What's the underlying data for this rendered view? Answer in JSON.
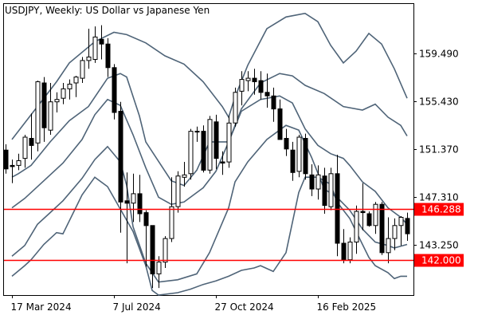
{
  "chart_data": {
    "type": "candlestick",
    "title": "USDJPY, Weekly:  US Dollar vs Japanese Yen",
    "yticks": [
      143.25,
      147.31,
      151.37,
      155.43,
      159.49
    ],
    "ytick_labels": [
      "143.250",
      "147.310",
      "151.370",
      "155.430",
      "159.490"
    ],
    "ylim": [
      139.0,
      163.7
    ],
    "xtick_labels": [
      {
        "label": "17 Mar 2024",
        "index": 1
      },
      {
        "label": "7 Jul 2024",
        "index": 17
      },
      {
        "label": "27 Oct 2024",
        "index": 33
      },
      {
        "label": "16 Feb 2025",
        "index": 49
      }
    ],
    "hlines": [
      {
        "value": 146.288,
        "label": "146.288",
        "color": "#ff0000"
      },
      {
        "value": 142.0,
        "label": "142.000",
        "color": "#ff0000"
      }
    ],
    "bollinger": [
      {
        "name": "upper",
        "points": [
          [
            1,
            152.2
          ],
          [
            4,
            154.3
          ],
          [
            8,
            157.1
          ],
          [
            10,
            158.7
          ],
          [
            14,
            160.5
          ],
          [
            17,
            161.3
          ],
          [
            19,
            161.1
          ],
          [
            22,
            160.4
          ],
          [
            25,
            159.3
          ],
          [
            28,
            158.6
          ],
          [
            31,
            157.1
          ],
          [
            34,
            155.0
          ],
          [
            35,
            154.1
          ],
          [
            36,
            155.8
          ],
          [
            38,
            158.5
          ],
          [
            41,
            161.6
          ],
          [
            44,
            162.6
          ],
          [
            47,
            162.9
          ],
          [
            49,
            162.2
          ],
          [
            51,
            160.2
          ],
          [
            53,
            158.7
          ],
          [
            55,
            159.7
          ],
          [
            57,
            161.2
          ],
          [
            59,
            160.3
          ],
          [
            61,
            158.2
          ],
          [
            63,
            155.7
          ]
        ]
      },
      {
        "name": "mid-upper",
        "points": [
          [
            1,
            149.0
          ],
          [
            2,
            149.3
          ],
          [
            4,
            150.0
          ],
          [
            7,
            152.0
          ],
          [
            10,
            153.8
          ],
          [
            13,
            155.0
          ],
          [
            16,
            157.4
          ],
          [
            18,
            157.8
          ],
          [
            19,
            157.5
          ],
          [
            21,
            154.2
          ],
          [
            22,
            152.0
          ],
          [
            26,
            148.7
          ],
          [
            28,
            148.3
          ],
          [
            30,
            149.6
          ],
          [
            32,
            152.0
          ],
          [
            35,
            152.0
          ],
          [
            37,
            154.8
          ],
          [
            40,
            157.0
          ],
          [
            43,
            157.8
          ],
          [
            45,
            157.6
          ],
          [
            47,
            156.8
          ],
          [
            50,
            156.1
          ],
          [
            53,
            155.0
          ],
          [
            56,
            154.7
          ],
          [
            58,
            155.2
          ],
          [
            60,
            154.1
          ],
          [
            62,
            153.4
          ],
          [
            63,
            152.5
          ]
        ]
      },
      {
        "name": "middle",
        "points": [
          [
            1,
            146.4
          ],
          [
            3,
            147.2
          ],
          [
            6,
            148.7
          ],
          [
            9,
            150.2
          ],
          [
            12,
            152.2
          ],
          [
            14,
            154.3
          ],
          [
            16,
            155.6
          ],
          [
            18,
            155.1
          ],
          [
            20,
            152.6
          ],
          [
            22,
            149.8
          ],
          [
            24,
            147.3
          ],
          [
            26,
            146.7
          ],
          [
            28,
            146.9
          ],
          [
            31,
            148.1
          ],
          [
            33,
            149.5
          ],
          [
            35,
            152.0
          ],
          [
            37,
            154.6
          ],
          [
            40,
            155.6
          ],
          [
            43,
            155.9
          ],
          [
            45,
            155.3
          ],
          [
            47,
            153.1
          ],
          [
            49,
            151.7
          ],
          [
            51,
            151.0
          ],
          [
            53,
            150.6
          ],
          [
            54,
            150.0
          ],
          [
            56,
            148.6
          ],
          [
            58,
            147.8
          ],
          [
            60,
            146.4
          ],
          [
            62,
            145.6
          ],
          [
            63,
            145.0
          ]
        ]
      },
      {
        "name": "mid-lower",
        "points": [
          [
            1,
            142.3
          ],
          [
            3,
            143.2
          ],
          [
            5,
            145.0
          ],
          [
            7,
            146.0
          ],
          [
            9,
            147.0
          ],
          [
            12,
            148.9
          ],
          [
            14,
            150.5
          ],
          [
            16,
            151.6
          ],
          [
            18,
            150.3
          ],
          [
            19,
            148.3
          ],
          [
            20,
            144.8
          ],
          [
            22,
            141.7
          ],
          [
            24,
            140.1
          ],
          [
            27,
            140.3
          ],
          [
            30,
            140.8
          ],
          [
            32,
            142.6
          ],
          [
            35,
            146.4
          ],
          [
            36,
            148.6
          ],
          [
            38,
            150.3
          ],
          [
            41,
            152.2
          ],
          [
            44,
            153.4
          ],
          [
            46,
            153.0
          ],
          [
            48,
            150.7
          ],
          [
            50,
            148.0
          ],
          [
            52,
            147.3
          ],
          [
            54,
            146.2
          ],
          [
            56,
            144.6
          ],
          [
            58,
            143.5
          ],
          [
            60,
            143.2
          ],
          [
            61,
            143.0
          ],
          [
            63,
            143.3
          ]
        ]
      },
      {
        "name": "lower",
        "points": [
          [
            1,
            140.6
          ],
          [
            3,
            141.5
          ],
          [
            4,
            142.0
          ],
          [
            6,
            143.3
          ],
          [
            8,
            144.3
          ],
          [
            9,
            144.2
          ],
          [
            12,
            147.5
          ],
          [
            14,
            149.0
          ],
          [
            16,
            148.2
          ],
          [
            18,
            146.3
          ],
          [
            20,
            144.4
          ],
          [
            22,
            141.5
          ],
          [
            23,
            139.4
          ],
          [
            24,
            139.0
          ],
          [
            27,
            139.2
          ],
          [
            29,
            139.5
          ],
          [
            31,
            139.9
          ],
          [
            33,
            140.2
          ],
          [
            35,
            140.6
          ],
          [
            37,
            141.1
          ],
          [
            39,
            141.3
          ],
          [
            40,
            141.5
          ],
          [
            42,
            141.0
          ],
          [
            44,
            142.6
          ],
          [
            46,
            147.7
          ],
          [
            47,
            149.0
          ],
          [
            49,
            149.0
          ],
          [
            51,
            148.4
          ],
          [
            52,
            146.9
          ],
          [
            54,
            145.5
          ],
          [
            56,
            143.3
          ],
          [
            57,
            142.2
          ],
          [
            58,
            141.5
          ],
          [
            60,
            140.9
          ],
          [
            61,
            140.4
          ],
          [
            62,
            140.6
          ],
          [
            63,
            140.6
          ]
        ]
      }
    ],
    "candles": [
      [
        151.3,
        151.8,
        149.3,
        149.7
      ],
      [
        150.0,
        150.5,
        148.5,
        149.9
      ],
      [
        150.0,
        151.0,
        149.6,
        150.4
      ],
      [
        150.6,
        152.6,
        149.8,
        152.4
      ],
      [
        152.3,
        154.4,
        150.5,
        151.7
      ],
      [
        151.9,
        157.2,
        151.2,
        157.1
      ],
      [
        157.0,
        157.5,
        152.0,
        153.2
      ],
      [
        153.0,
        157.0,
        152.6,
        155.4
      ],
      [
        155.4,
        156.2,
        154.5,
        155.6
      ],
      [
        155.7,
        157.0,
        155.2,
        156.5
      ],
      [
        156.5,
        157.3,
        155.6,
        156.9
      ],
      [
        157.0,
        157.6,
        155.8,
        157.5
      ],
      [
        157.4,
        159.2,
        157.0,
        158.9
      ],
      [
        158.9,
        161.6,
        158.2,
        159.2
      ],
      [
        159.0,
        161.8,
        158.7,
        160.9
      ],
      [
        160.7,
        161.9,
        159.0,
        160.3
      ],
      [
        160.3,
        160.8,
        157.5,
        158.3
      ],
      [
        158.3,
        158.6,
        153.9,
        154.5
      ],
      [
        154.6,
        155.4,
        144.3,
        146.9
      ],
      [
        147.0,
        149.4,
        141.7,
        146.8
      ],
      [
        146.8,
        149.3,
        145.2,
        147.6
      ],
      [
        147.6,
        149.2,
        145.2,
        145.9
      ],
      [
        146.0,
        146.2,
        141.4,
        144.9
      ],
      [
        144.9,
        144.9,
        139.6,
        140.8
      ],
      [
        140.8,
        142.3,
        139.6,
        141.8
      ],
      [
        141.8,
        144.0,
        141.3,
        143.8
      ],
      [
        143.8,
        149.0,
        143.5,
        146.5
      ],
      [
        146.5,
        149.5,
        146.0,
        149.1
      ],
      [
        149.0,
        150.3,
        148.2,
        149.2
      ],
      [
        149.3,
        153.1,
        148.8,
        152.9
      ],
      [
        152.9,
        153.3,
        152.0,
        152.9
      ],
      [
        152.9,
        153.4,
        149.4,
        149.6
      ],
      [
        149.6,
        154.2,
        149.3,
        153.9
      ],
      [
        153.7,
        154.3,
        149.7,
        150.6
      ],
      [
        150.3,
        151.2,
        149.2,
        150.2
      ],
      [
        150.3,
        154.2,
        149.8,
        153.6
      ],
      [
        153.6,
        156.6,
        153.3,
        156.2
      ],
      [
        156.3,
        158.0,
        155.1,
        157.3
      ],
      [
        157.2,
        158.0,
        156.3,
        157.4
      ],
      [
        157.4,
        158.2,
        156.0,
        157.1
      ],
      [
        157.2,
        158.0,
        155.6,
        156.2
      ],
      [
        156.2,
        157.8,
        154.9,
        155.9
      ],
      [
        155.9,
        156.6,
        153.7,
        154.8
      ],
      [
        154.8,
        155.6,
        152.3,
        152.2
      ],
      [
        152.3,
        153.1,
        150.8,
        151.4
      ],
      [
        151.3,
        152.0,
        148.7,
        149.4
      ],
      [
        149.5,
        152.6,
        149.0,
        152.4
      ],
      [
        152.3,
        152.7,
        148.8,
        149.3
      ],
      [
        149.2,
        150.1,
        147.4,
        148.0
      ],
      [
        148.0,
        150.0,
        147.1,
        149.2
      ],
      [
        149.1,
        149.8,
        145.9,
        146.6
      ],
      [
        146.5,
        149.8,
        146.2,
        149.3
      ],
      [
        149.3,
        150.9,
        142.3,
        143.4
      ],
      [
        143.4,
        144.6,
        141.7,
        142.0
      ],
      [
        142.0,
        143.9,
        141.7,
        143.5
      ],
      [
        143.5,
        146.6,
        142.5,
        146.1
      ],
      [
        146.1,
        148.5,
        144.5,
        146.0
      ],
      [
        145.9,
        146.1,
        144.8,
        144.9
      ],
      [
        144.9,
        146.9,
        144.2,
        146.7
      ],
      [
        146.7,
        146.9,
        142.4,
        142.6
      ],
      [
        142.6,
        145.6,
        141.7,
        143.8
      ],
      [
        143.8,
        145.5,
        142.8,
        144.9
      ],
      [
        144.9,
        145.7,
        143.2,
        145.6
      ],
      [
        145.5,
        146.0,
        143.6,
        144.2
      ]
    ]
  }
}
